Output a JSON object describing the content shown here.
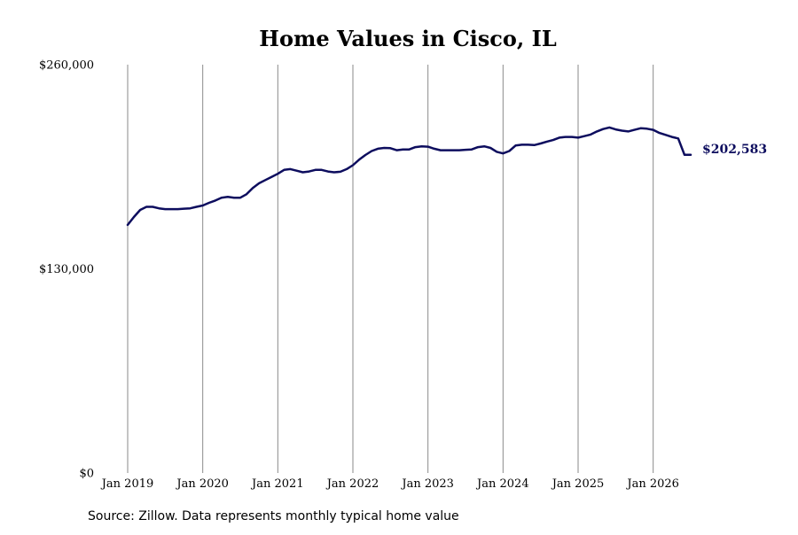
{
  "chart_data": {
    "type": "line",
    "title": "Home Values in Cisco, IL",
    "xlabel": "",
    "ylabel": "",
    "ylim": [
      0,
      260000
    ],
    "y_ticks": [
      {
        "value": 0,
        "label": "$0"
      },
      {
        "value": 130000,
        "label": "$130,000"
      },
      {
        "value": 260000,
        "label": "$260,000"
      }
    ],
    "x_ticks": [
      {
        "value": 2019.0,
        "label": "Jan 2019"
      },
      {
        "value": 2020.0,
        "label": "Jan 2020"
      },
      {
        "value": 2021.0,
        "label": "Jan 2021"
      },
      {
        "value": 2022.0,
        "label": "Jan 2022"
      },
      {
        "value": 2023.0,
        "label": "Jan 2023"
      },
      {
        "value": 2024.0,
        "label": "Jan 2024"
      },
      {
        "value": 2025.0,
        "label": "Jan 2025"
      },
      {
        "value": 2026.0,
        "label": "Jan 2026"
      }
    ],
    "xlim": [
      2019.0,
      2026.5
    ],
    "grid": "vertical",
    "series": [
      {
        "color": "#0d0d5e",
        "x": [
          2019.0,
          2019.083,
          2019.167,
          2019.25,
          2019.333,
          2019.417,
          2019.5,
          2019.583,
          2019.667,
          2019.75,
          2019.833,
          2019.917,
          2020.0,
          2020.083,
          2020.167,
          2020.25,
          2020.333,
          2020.417,
          2020.5,
          2020.583,
          2020.667,
          2020.75,
          2020.833,
          2020.917,
          2021.0,
          2021.083,
          2021.167,
          2021.25,
          2021.333,
          2021.417,
          2021.5,
          2021.583,
          2021.667,
          2021.75,
          2021.833,
          2021.917,
          2022.0,
          2022.083,
          2022.167,
          2022.25,
          2022.333,
          2022.417,
          2022.5,
          2022.583,
          2022.667,
          2022.75,
          2022.833,
          2022.917,
          2023.0,
          2023.083,
          2023.167,
          2023.25,
          2023.333,
          2023.417,
          2023.5,
          2023.583,
          2023.667,
          2023.75,
          2023.833,
          2023.917,
          2024.0,
          2024.083,
          2024.167,
          2024.25,
          2024.333,
          2024.417,
          2024.5,
          2024.583,
          2024.667,
          2024.75,
          2024.833,
          2024.917,
          2025.0,
          2025.083,
          2025.167,
          2025.25,
          2025.333,
          2025.417,
          2025.5,
          2025.583,
          2025.667,
          2025.75,
          2025.833,
          2025.917,
          2026.0,
          2026.083,
          2026.167,
          2026.25,
          2026.333,
          2026.417,
          2026.5
        ],
        "values": [
          158000,
          163000,
          167500,
          169500,
          169500,
          168500,
          168000,
          168000,
          168000,
          168300,
          168500,
          169500,
          170300,
          172000,
          173500,
          175300,
          175800,
          175300,
          175300,
          177500,
          181500,
          184500,
          186500,
          188500,
          190500,
          193000,
          193500,
          192500,
          191500,
          192000,
          193000,
          193000,
          192000,
          191500,
          191800,
          193500,
          196000,
          199500,
          202500,
          205000,
          206500,
          207000,
          206800,
          205500,
          206000,
          206000,
          207500,
          208000,
          207800,
          206500,
          205500,
          205500,
          205500,
          205500,
          205800,
          206000,
          207500,
          208000,
          207000,
          204500,
          203500,
          205000,
          208500,
          209000,
          209000,
          208800,
          209800,
          211000,
          212000,
          213500,
          214000,
          214000,
          213500,
          214500,
          215500,
          217500,
          219000,
          220000,
          218800,
          218000,
          217500,
          218500,
          219500,
          219200,
          218500,
          216500,
          215300,
          214000,
          213000,
          202583,
          202583
        ]
      }
    ],
    "end_label": "$202,583",
    "source": "Source: Zillow. Data represents monthly typical home value"
  }
}
